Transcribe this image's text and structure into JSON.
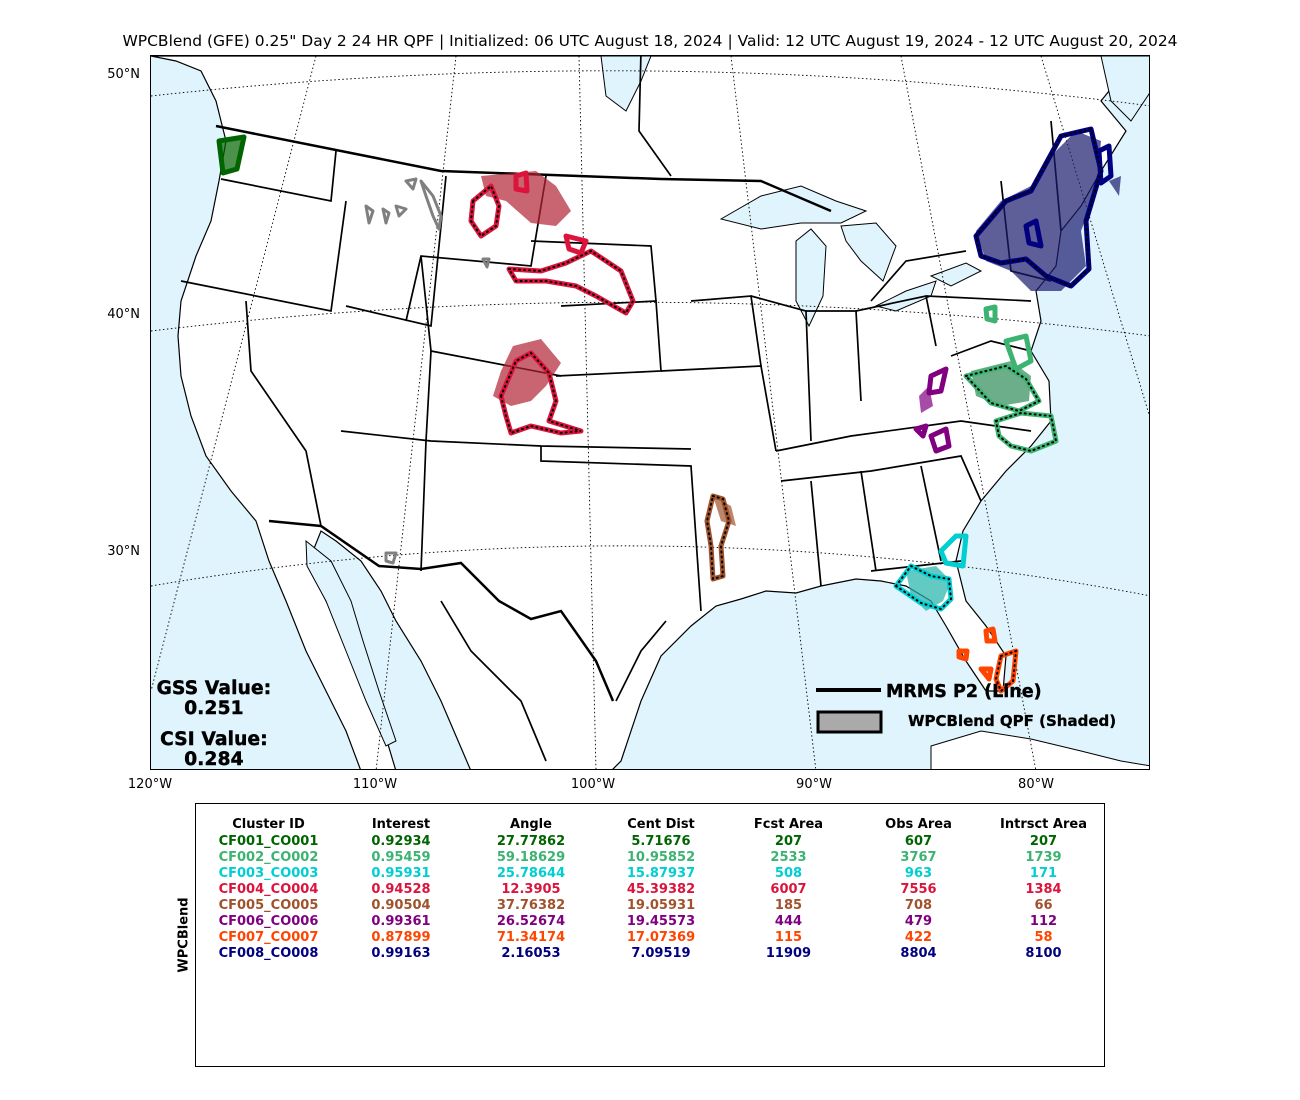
{
  "title": "WPCBlend (GFE) 0.25\" Day 2 24 HR QPF | Initialized: 06 UTC August 18, 2024 | Valid: 12 UTC August 19, 2024 - 12 UTC August 20, 2024",
  "lat_labels": [
    "50°N",
    "40°N",
    "30°N"
  ],
  "lon_labels": [
    "120°W",
    "110°W",
    "100°W",
    "90°W",
    "80°W"
  ],
  "legend": {
    "line_label": "MRMS P2 (Line)",
    "shaded_label": "WPCBlend QPF (Shaded)"
  },
  "stats": {
    "gss_label": "GSS Value:",
    "gss_value": "0.251",
    "csi_label": "CSI Value:",
    "csi_value": "0.284"
  },
  "table": {
    "row_axis_label": "WPCBlend",
    "headers": [
      "Cluster ID",
      "Interest",
      "Angle",
      "Cent Dist",
      "Fcst Area",
      "Obs Area",
      "Intrsct Area"
    ],
    "rows": [
      {
        "color": "#006400",
        "cells": [
          "CF001_CO001",
          "0.92934",
          "27.77862",
          "5.71676",
          "207",
          "607",
          "207"
        ]
      },
      {
        "color": "#3cb371",
        "cells": [
          "CF002_CO002",
          "0.95459",
          "59.18629",
          "10.95852",
          "2533",
          "3767",
          "1739"
        ]
      },
      {
        "color": "#00ced1",
        "cells": [
          "CF003_CO003",
          "0.95931",
          "25.78644",
          "15.87937",
          "508",
          "963",
          "171"
        ]
      },
      {
        "color": "#dc143c",
        "cells": [
          "CF004_CO004",
          "0.94528",
          "12.3905",
          "45.39382",
          "6007",
          "7556",
          "1384"
        ]
      },
      {
        "color": "#a0522d",
        "cells": [
          "CF005_CO005",
          "0.90504",
          "37.76382",
          "19.05931",
          "185",
          "708",
          "66"
        ]
      },
      {
        "color": "#800080",
        "cells": [
          "CF006_CO006",
          "0.99361",
          "26.52674",
          "19.45573",
          "444",
          "479",
          "112"
        ]
      },
      {
        "color": "#ff4500",
        "cells": [
          "CF007_CO007",
          "0.87899",
          "71.34174",
          "17.07369",
          "115",
          "422",
          "58"
        ]
      },
      {
        "color": "#000080",
        "cells": [
          "CF008_CO008",
          "0.99163",
          "2.16053",
          "7.09519",
          "11909",
          "8804",
          "8100"
        ]
      }
    ]
  },
  "colors": {
    "water": "#dff4fd",
    "land": "#ffffff",
    "unmatched": "#808080"
  }
}
